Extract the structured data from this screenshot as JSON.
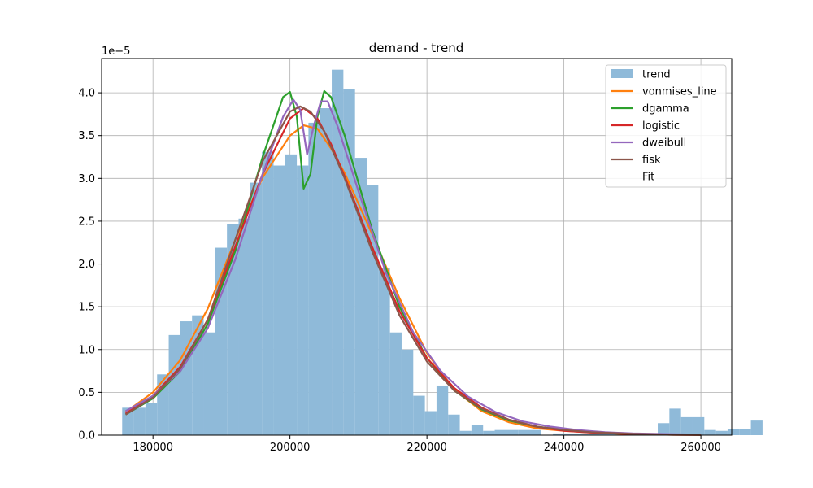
{
  "chart_data": {
    "type": "histogram",
    "title": "demand - trend",
    "y_offset_label": "1e−5",
    "xlim": [
      172500,
      264500
    ],
    "ylim": [
      0,
      4.4
    ],
    "x_ticks": [
      180000,
      200000,
      220000,
      240000,
      260000
    ],
    "x_tick_labels": [
      "180000",
      "200000",
      "220000",
      "240000",
      "260000"
    ],
    "y_ticks": [
      0.0,
      0.5,
      1.0,
      1.5,
      2.0,
      2.5,
      3.0,
      3.5,
      4.0
    ],
    "y_tick_labels": [
      "0.0",
      "0.5",
      "1.0",
      "1.5",
      "2.0",
      "2.5",
      "3.0",
      "3.5",
      "4.0"
    ],
    "grid": true,
    "legend_position": "top-right",
    "histogram": {
      "name": "trend",
      "color": "#8fbad9",
      "bin_start": 175500,
      "bin_width": 1700,
      "values": [
        0.32,
        0.32,
        0.38,
        0.71,
        1.17,
        1.33,
        1.4,
        1.2,
        2.19,
        2.47,
        2.53,
        2.95,
        3.31,
        3.15,
        3.28,
        3.15,
        3.65,
        3.82,
        4.27,
        4.04,
        3.24,
        2.92,
        1.95,
        1.2,
        1.0,
        0.46,
        0.28,
        0.58,
        0.24,
        0.05,
        0.12,
        0.05,
        0.06,
        0.06,
        0.06,
        0.06,
        0.0,
        0.02,
        0.02,
        0.02,
        0.02,
        0.02,
        0.02,
        0.02,
        0.02,
        0.02,
        0.14,
        0.31,
        0.21,
        0.21,
        0.06,
        0.05,
        0.07,
        0.07,
        0.17
      ]
    },
    "series": [
      {
        "name": "vonmises_line",
        "color": "#ff7f0e",
        "x": [
          176000,
          180000,
          184000,
          188000,
          192000,
          196000,
          200000,
          202000,
          204000,
          206000,
          208000,
          212000,
          216000,
          220000,
          224000,
          228000,
          232000,
          236000,
          240000,
          244000,
          250000,
          256000,
          260000
        ],
        "y": [
          0.27,
          0.5,
          0.88,
          1.48,
          2.28,
          3.01,
          3.5,
          3.62,
          3.58,
          3.35,
          3.06,
          2.35,
          1.6,
          0.96,
          0.53,
          0.28,
          0.15,
          0.08,
          0.05,
          0.03,
          0.01,
          0.005,
          0.003
        ]
      },
      {
        "name": "dgamma",
        "color": "#2ca02c",
        "x": [
          176000,
          180000,
          184000,
          188000,
          192000,
          196000,
          199000,
          200000,
          201000,
          202000,
          203000,
          204000,
          205000,
          206000,
          208000,
          212000,
          216000,
          220000,
          224000,
          228000,
          232000,
          236000,
          240000,
          244000,
          250000,
          256000,
          260000
        ],
        "y": [
          0.24,
          0.43,
          0.75,
          1.3,
          2.15,
          3.25,
          3.95,
          4.01,
          3.72,
          2.88,
          3.05,
          3.72,
          4.02,
          3.95,
          3.5,
          2.4,
          1.5,
          0.9,
          0.52,
          0.3,
          0.17,
          0.1,
          0.06,
          0.035,
          0.015,
          0.008,
          0.005
        ]
      },
      {
        "name": "logistic",
        "color": "#d62728",
        "x": [
          176000,
          180000,
          184000,
          188000,
          192000,
          196000,
          200000,
          202000,
          204000,
          206000,
          208000,
          212000,
          216000,
          220000,
          224000,
          228000,
          232000,
          236000,
          240000,
          244000,
          250000,
          256000,
          260000
        ],
        "y": [
          0.25,
          0.46,
          0.8,
          1.35,
          2.2,
          3.05,
          3.7,
          3.82,
          3.7,
          3.4,
          3.02,
          2.2,
          1.45,
          0.9,
          0.55,
          0.32,
          0.18,
          0.1,
          0.05,
          0.03,
          0.012,
          0.005,
          0.003
        ]
      },
      {
        "name": "dweibull",
        "color": "#9467bd",
        "x": [
          176000,
          180000,
          184000,
          188000,
          192000,
          196000,
          199000,
          200500,
          201500,
          202500,
          203500,
          204500,
          205500,
          207000,
          210000,
          214000,
          218000,
          222000,
          226000,
          230000,
          234000,
          238000,
          242000,
          246000,
          250000,
          256000,
          260000
        ],
        "y": [
          0.28,
          0.46,
          0.75,
          1.25,
          2.05,
          3.05,
          3.72,
          3.92,
          3.8,
          3.28,
          3.62,
          3.9,
          3.9,
          3.6,
          2.85,
          1.9,
          1.2,
          0.75,
          0.45,
          0.27,
          0.16,
          0.1,
          0.06,
          0.035,
          0.02,
          0.01,
          0.006
        ]
      },
      {
        "name": "fisk",
        "color": "#8c564b",
        "x": [
          176000,
          180000,
          184000,
          188000,
          192000,
          196000,
          200000,
          201500,
          203000,
          205000,
          208000,
          212000,
          216000,
          220000,
          224000,
          228000,
          232000,
          236000,
          240000,
          244000,
          250000,
          256000,
          260000
        ],
        "y": [
          0.24,
          0.44,
          0.78,
          1.35,
          2.28,
          3.2,
          3.78,
          3.84,
          3.78,
          3.55,
          3.0,
          2.15,
          1.4,
          0.86,
          0.52,
          0.31,
          0.18,
          0.1,
          0.06,
          0.035,
          0.015,
          0.006,
          0.003
        ]
      }
    ],
    "legend": [
      {
        "label": "trend",
        "kind": "patch",
        "color": "#8fbad9"
      },
      {
        "label": "vonmises_line",
        "kind": "line",
        "color": "#ff7f0e"
      },
      {
        "label": "dgamma",
        "kind": "line",
        "color": "#2ca02c"
      },
      {
        "label": "logistic",
        "kind": "line",
        "color": "#d62728"
      },
      {
        "label": "dweibull",
        "kind": "line",
        "color": "#9467bd"
      },
      {
        "label": "fisk",
        "kind": "line",
        "color": "#8c564b"
      },
      {
        "label": "Fit",
        "kind": "none",
        "color": "#ffffff"
      }
    ]
  }
}
